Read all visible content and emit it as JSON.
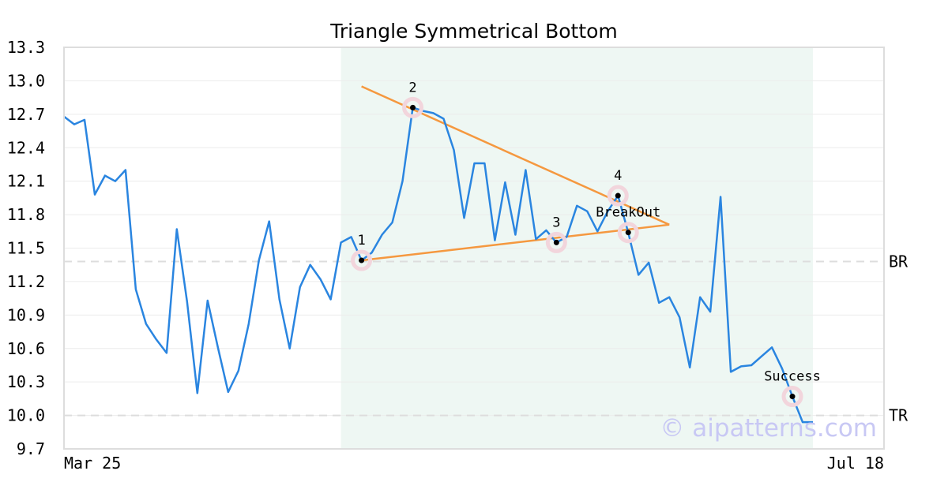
{
  "chart_data": {
    "type": "line",
    "title": "Triangle Symmetrical Bottom",
    "xlabel": "",
    "ylabel": "",
    "x_tick_labels": [
      "Mar 25",
      "Jul 18"
    ],
    "y_ticks": [
      "13.3",
      "13.0",
      "12.7",
      "12.4",
      "12.1",
      "11.8",
      "11.5",
      "11.2",
      "10.9",
      "10.6",
      "10.3",
      "10.0",
      "9.7"
    ],
    "ylim": [
      9.7,
      13.3
    ],
    "grid": true,
    "watermark": "© aipatterns.com",
    "colors": {
      "price": "#2a85e0",
      "trend": "#f5983f",
      "shade": "#eef7f3",
      "hline": "#dddddd",
      "marker_halo": "#f2d5dc",
      "frame": "#dddddd"
    },
    "pattern_region_index": [
      27,
      73
    ],
    "series": [
      {
        "values": [
          12.68,
          12.61,
          12.65,
          11.98,
          12.15,
          12.1,
          12.2,
          11.13,
          10.82,
          10.68,
          10.56,
          11.67,
          11.02,
          10.2,
          11.03,
          10.61,
          10.21,
          10.4,
          10.82,
          11.39,
          11.74,
          11.04,
          10.6,
          11.15,
          11.35,
          11.22,
          11.04,
          11.55,
          11.6,
          11.39,
          11.46,
          11.62,
          11.73,
          12.1,
          12.76,
          12.73,
          12.71,
          12.66,
          12.38,
          11.77,
          12.26,
          12.26,
          11.57,
          12.09,
          11.62,
          12.2,
          11.58,
          11.66,
          11.55,
          11.6,
          11.88,
          11.83,
          11.65,
          11.83,
          11.97,
          11.64,
          11.26,
          11.37,
          11.01,
          11.06,
          10.88,
          10.43,
          11.06,
          10.93,
          11.96,
          10.39,
          10.44,
          10.45,
          10.53,
          10.61,
          10.42,
          10.17,
          9.94,
          9.94
        ]
      }
    ],
    "hlines": [
      {
        "label": "BR",
        "y": 11.38
      },
      {
        "label": "TR",
        "y": 10.0
      }
    ],
    "trendlines": [
      {
        "from": [
          29,
          12.95
        ],
        "to": [
          59,
          11.71
        ]
      },
      {
        "from": [
          29,
          11.39
        ],
        "to": [
          59,
          11.71
        ]
      }
    ],
    "annotations": [
      {
        "label": "1",
        "x": 29,
        "y": 11.39
      },
      {
        "label": "2",
        "x": 34,
        "y": 12.76
      },
      {
        "label": "3",
        "x": 48,
        "y": 11.55
      },
      {
        "label": "4",
        "x": 54,
        "y": 11.97
      },
      {
        "label": "BreakOut",
        "x": 55,
        "y": 11.64
      },
      {
        "label": "Success",
        "x": 71,
        "y": 10.17
      }
    ]
  }
}
